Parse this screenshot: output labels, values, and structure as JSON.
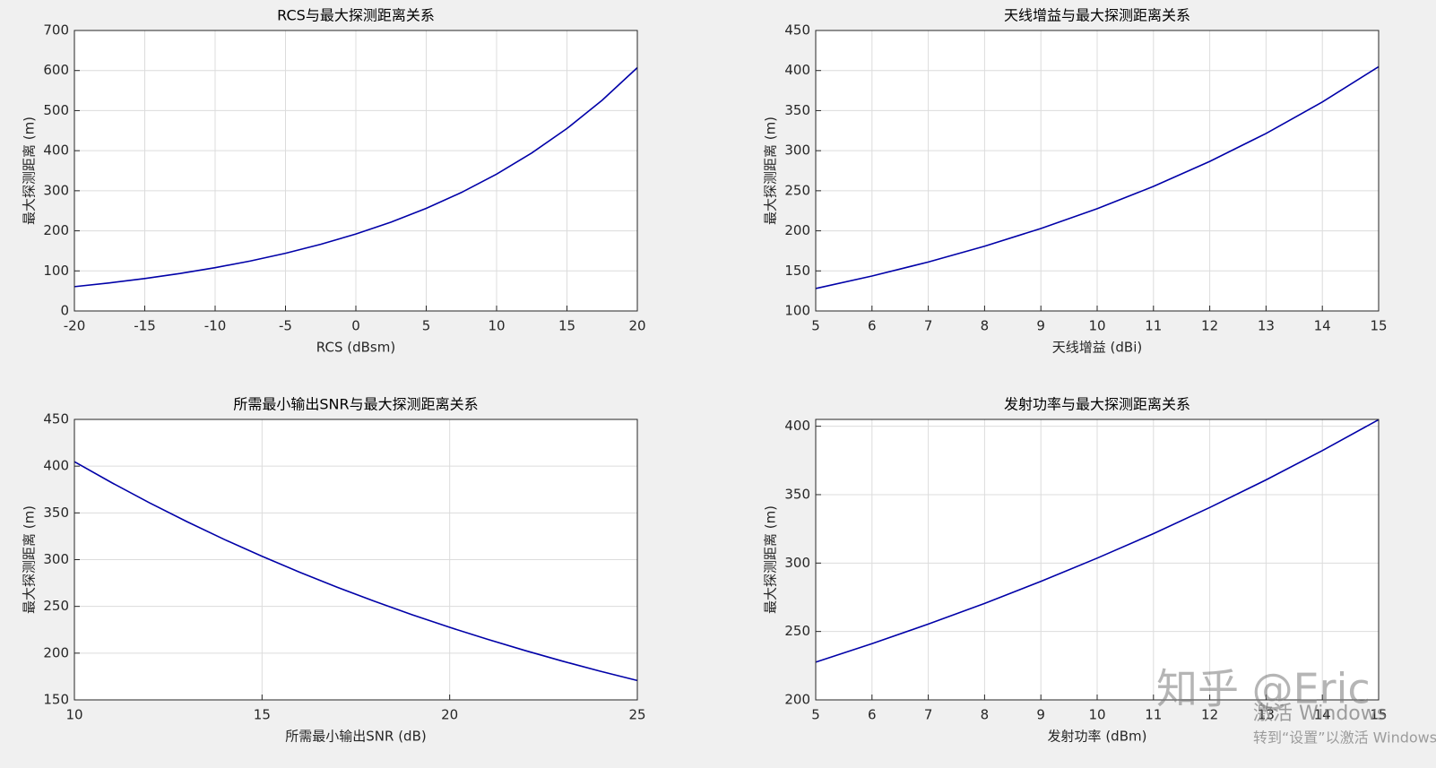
{
  "chart_data": [
    {
      "type": "line",
      "title": "RCS与最大探测距离关系",
      "xlabel": "RCS (dBsm)",
      "ylabel": "最大探测距离 (m)",
      "x": [
        -20,
        -17.5,
        -15,
        -12.5,
        -10,
        -7.5,
        -5,
        -2.5,
        0,
        2.5,
        5,
        7.5,
        10,
        12.5,
        15,
        17.5,
        20
      ],
      "values": [
        60.7,
        70.1,
        81.0,
        93.5,
        108.0,
        124.7,
        144.0,
        166.3,
        192.0,
        221.7,
        256.0,
        295.7,
        341.4,
        394.3,
        455.3,
        525.8,
        607.2
      ],
      "color": "#0000a8",
      "xlim": [
        -20,
        20
      ],
      "xticks": [
        -20,
        -15,
        -10,
        -5,
        0,
        5,
        10,
        15,
        20
      ],
      "ylim": [
        0,
        700
      ],
      "yticks": [
        0,
        100,
        200,
        300,
        400,
        500,
        600,
        700
      ],
      "grid": true
    },
    {
      "type": "line",
      "title": "天线增益与最大探测距离关系",
      "xlabel": "天线增益 (dBi)",
      "ylabel": "最大探测距离 (m)",
      "x": [
        5,
        6,
        7,
        8,
        9,
        10,
        11,
        12,
        13,
        14,
        15
      ],
      "values": [
        128.0,
        143.6,
        161.1,
        180.8,
        202.9,
        227.6,
        255.4,
        286.6,
        321.5,
        360.7,
        404.8
      ],
      "color": "#0000a8",
      "xlim": [
        5,
        15
      ],
      "xticks": [
        5,
        6,
        7,
        8,
        9,
        10,
        11,
        12,
        13,
        14,
        15
      ],
      "ylim": [
        100,
        450
      ],
      "yticks": [
        100,
        150,
        200,
        250,
        300,
        350,
        400,
        450
      ],
      "grid": true
    },
    {
      "type": "line",
      "title": "所需最小输出SNR与最大探测距离关系",
      "xlabel": "所需最小输出SNR (dB)",
      "ylabel": "最大探测距离 (m)",
      "x": [
        10,
        11,
        12,
        13,
        14,
        15,
        16,
        17,
        18,
        19,
        20,
        21,
        22,
        23,
        24,
        25
      ],
      "values": [
        404.8,
        382.2,
        360.8,
        340.6,
        321.5,
        303.6,
        286.6,
        270.5,
        255.4,
        241.1,
        227.6,
        214.9,
        202.9,
        191.5,
        180.8,
        170.7
      ],
      "color": "#0000a8",
      "xlim": [
        10,
        25
      ],
      "xticks": [
        10,
        15,
        20,
        25
      ],
      "ylim": [
        150,
        450
      ],
      "yticks": [
        150,
        200,
        250,
        300,
        350,
        400,
        450
      ],
      "grid": true
    },
    {
      "type": "line",
      "title": "发射功率与最大探测距离关系",
      "xlabel": "发射功率 (dBm)",
      "ylabel": "最大探测距离 (m)",
      "x": [
        5,
        6,
        7,
        8,
        9,
        10,
        11,
        12,
        13,
        14,
        15
      ],
      "values": [
        227.6,
        241.1,
        255.4,
        270.5,
        286.6,
        303.6,
        321.5,
        340.6,
        360.8,
        382.2,
        404.8
      ],
      "color": "#0000a8",
      "xlim": [
        5,
        15
      ],
      "xticks": [
        5,
        6,
        7,
        8,
        9,
        10,
        11,
        12,
        13,
        14,
        15
      ],
      "ylim": [
        200,
        405
      ],
      "yticks": [
        200,
        250,
        300,
        350,
        400
      ],
      "grid": true
    }
  ],
  "watermark": {
    "text": "知乎 @Eric",
    "overlay": [
      "激活 Windows",
      "转到“设置”以激活 Windows"
    ]
  }
}
